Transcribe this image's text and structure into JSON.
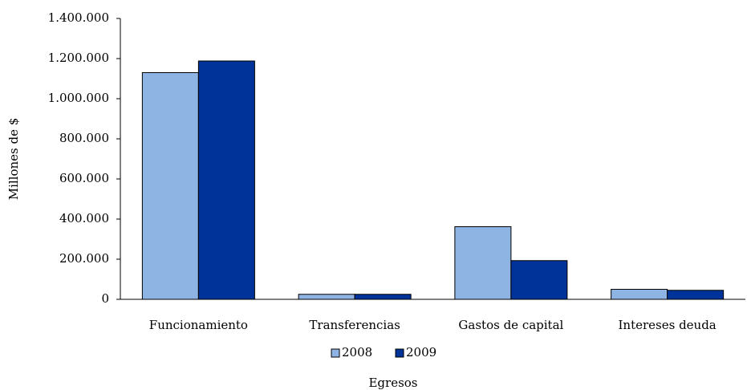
{
  "chart_data": {
    "type": "bar",
    "categories": [
      "Funcionamiento",
      "Transferencias",
      "Gastos de capital",
      "Intereses deuda"
    ],
    "series": [
      {
        "name": "2008",
        "color": "#8eb4e3",
        "values": [
          1130000,
          25000,
          362000,
          50000
        ]
      },
      {
        "name": "2009",
        "color": "#003399",
        "values": [
          1188000,
          25000,
          193000,
          45000
        ]
      }
    ],
    "x_label": "Egresos",
    "y_label": "Millones de $",
    "ylim": [
      0,
      1400000
    ],
    "yticks": [
      0,
      {
        "value": 200000,
        "label": "200.000"
      },
      {
        "value": 400000,
        "label": "400.000"
      },
      {
        "value": 600000,
        "label": "600.000"
      },
      {
        "value": 800000,
        "label": "800.000"
      },
      {
        "value": 1000000,
        "label": "1.000.000"
      },
      {
        "value": 1200000,
        "label": "1.200.000"
      },
      {
        "value": 1400000,
        "label": "1.400.000"
      }
    ],
    "grid": false,
    "legend": "bottom"
  }
}
